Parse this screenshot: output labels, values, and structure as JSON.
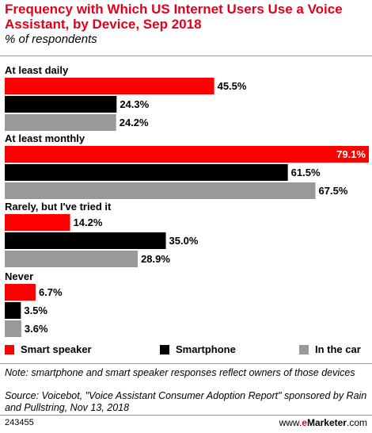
{
  "header": {
    "title": "Frequency with Which US Internet Users Use a Voice Assistant, by Device, Sep 2018",
    "subtitle": "% of respondents"
  },
  "chart_data": {
    "type": "bar",
    "orientation": "horizontal",
    "categories": [
      "At least daily",
      "At least monthly",
      "Rarely, but I've tried it",
      "Never"
    ],
    "series": [
      {
        "name": "Smart speaker",
        "color": "#ff0000",
        "values": [
          45.5,
          79.1,
          14.2,
          6.7
        ]
      },
      {
        "name": "Smartphone",
        "color": "#000000",
        "values": [
          24.3,
          61.5,
          35.0,
          3.5
        ]
      },
      {
        "name": "In the car",
        "color": "#999999",
        "values": [
          24.2,
          67.5,
          28.9,
          3.6
        ]
      }
    ],
    "value_labels": [
      [
        "45.5%",
        "24.3%",
        "24.2%"
      ],
      [
        "79.1%",
        "61.5%",
        "67.5%"
      ],
      [
        "14.2%",
        "35.0%",
        "28.9%"
      ],
      [
        "6.7%",
        "3.5%",
        "3.6%"
      ]
    ],
    "legend_position": "bottom",
    "xlim": [
      0,
      79.1
    ],
    "grid": false
  },
  "footer": {
    "note": "Note: smartphone and smart speaker responses reflect owners of those devices",
    "source": "Source: Voicebot, \"Voice Assistant Consumer Adoption Report\" sponsored by Rain and Pullstring, Nov 13, 2018",
    "chart_id": "243455",
    "brand_prefix": "www.",
    "brand_em": "e",
    "brand_rest": "Marketer",
    "brand_suffix": ".com"
  }
}
